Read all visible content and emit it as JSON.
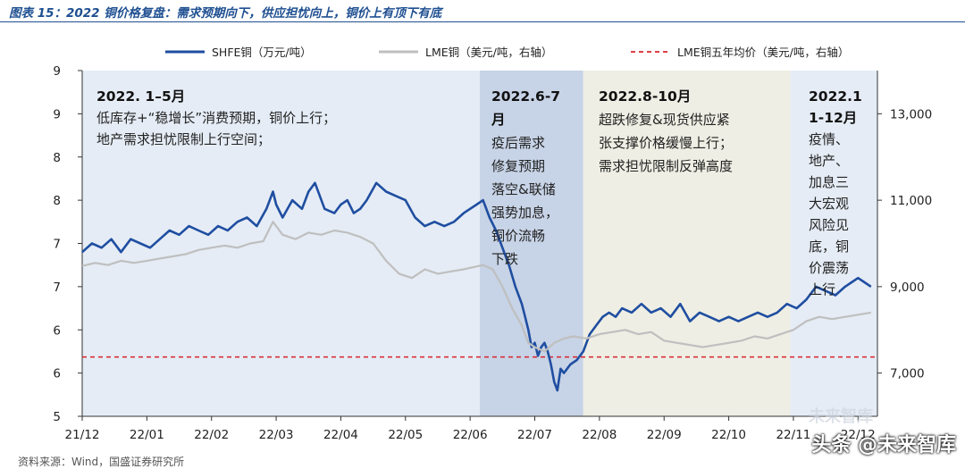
{
  "header": {
    "title": "图表 15：2022 铜价格复盘：需求预期向下，供应担忧向上，铜价上有顶下有底"
  },
  "chart_data": {
    "type": "line",
    "legend": [
      {
        "name": "SHFE铜（万元/吨）",
        "color": "#1f4ea1",
        "style": "solid",
        "placement": "top"
      },
      {
        "name": "LME铜（美元/吨，右轴）",
        "color": "#bfbfbf",
        "style": "solid",
        "placement": "top"
      },
      {
        "name": "LME铜五年均价（美元/吨，右轴）",
        "color": "#d9232d",
        "style": "dashed",
        "placement": "top"
      }
    ],
    "left_axis": {
      "ticks": [
        "9",
        "9",
        "8",
        "8",
        "7",
        "7",
        "6",
        "6",
        "5"
      ],
      "tick_values": [
        9.0,
        8.5,
        8.0,
        7.5,
        7.0,
        6.5,
        6.0,
        5.5,
        5.0
      ],
      "range": [
        5.0,
        9.0
      ]
    },
    "right_axis": {
      "ticks": [
        "13,000",
        "11,000",
        "9,000",
        "7,000"
      ],
      "tick_values": [
        13000,
        11000,
        9000,
        7000
      ],
      "range": [
        6000,
        14000
      ]
    },
    "x_axis": {
      "tick_labels": [
        "21/12",
        "22/01",
        "22/02",
        "22/03",
        "22/04",
        "22/05",
        "22/06",
        "22/07",
        "22/08",
        "22/09",
        "22/10",
        "22/11",
        "22/12"
      ],
      "range_months": [
        0,
        12.3
      ]
    },
    "lme_five_year_avg": 7373,
    "series": [
      {
        "name": "SHFE铜",
        "axis": "left",
        "points": [
          [
            0.0,
            6.9
          ],
          [
            0.15,
            7.0
          ],
          [
            0.3,
            6.95
          ],
          [
            0.45,
            7.05
          ],
          [
            0.6,
            6.9
          ],
          [
            0.75,
            7.05
          ],
          [
            0.9,
            7.0
          ],
          [
            1.05,
            6.95
          ],
          [
            1.2,
            7.05
          ],
          [
            1.35,
            7.15
          ],
          [
            1.5,
            7.1
          ],
          [
            1.65,
            7.2
          ],
          [
            1.8,
            7.15
          ],
          [
            1.95,
            7.1
          ],
          [
            2.1,
            7.2
          ],
          [
            2.25,
            7.15
          ],
          [
            2.4,
            7.25
          ],
          [
            2.55,
            7.3
          ],
          [
            2.7,
            7.2
          ],
          [
            2.85,
            7.4
          ],
          [
            2.95,
            7.6
          ],
          [
            3.0,
            7.45
          ],
          [
            3.1,
            7.3
          ],
          [
            3.25,
            7.5
          ],
          [
            3.4,
            7.4
          ],
          [
            3.5,
            7.6
          ],
          [
            3.6,
            7.7
          ],
          [
            3.75,
            7.4
          ],
          [
            3.9,
            7.35
          ],
          [
            4.0,
            7.45
          ],
          [
            4.1,
            7.5
          ],
          [
            4.2,
            7.35
          ],
          [
            4.3,
            7.4
          ],
          [
            4.4,
            7.5
          ],
          [
            4.55,
            7.7
          ],
          [
            4.7,
            7.6
          ],
          [
            4.85,
            7.55
          ],
          [
            5.0,
            7.5
          ],
          [
            5.15,
            7.3
          ],
          [
            5.3,
            7.2
          ],
          [
            5.45,
            7.25
          ],
          [
            5.6,
            7.2
          ],
          [
            5.75,
            7.25
          ],
          [
            5.9,
            7.35
          ],
          [
            6.0,
            7.4
          ],
          [
            6.1,
            7.45
          ],
          [
            6.2,
            7.5
          ],
          [
            6.3,
            7.3
          ],
          [
            6.4,
            7.15
          ],
          [
            6.5,
            6.95
          ],
          [
            6.6,
            6.75
          ],
          [
            6.7,
            6.5
          ],
          [
            6.8,
            6.3
          ],
          [
            6.85,
            6.15
          ],
          [
            6.9,
            6.0
          ],
          [
            6.95,
            5.8
          ],
          [
            7.0,
            5.85
          ],
          [
            7.05,
            5.7
          ],
          [
            7.1,
            5.8
          ],
          [
            7.15,
            5.85
          ],
          [
            7.2,
            5.75
          ],
          [
            7.25,
            5.6
          ],
          [
            7.3,
            5.4
          ],
          [
            7.35,
            5.3
          ],
          [
            7.4,
            5.55
          ],
          [
            7.45,
            5.5
          ],
          [
            7.55,
            5.6
          ],
          [
            7.65,
            5.65
          ],
          [
            7.75,
            5.75
          ],
          [
            7.85,
            5.95
          ],
          [
            7.95,
            6.05
          ],
          [
            8.05,
            6.15
          ],
          [
            8.15,
            6.2
          ],
          [
            8.25,
            6.15
          ],
          [
            8.35,
            6.25
          ],
          [
            8.5,
            6.2
          ],
          [
            8.65,
            6.3
          ],
          [
            8.8,
            6.2
          ],
          [
            8.95,
            6.25
          ],
          [
            9.1,
            6.15
          ],
          [
            9.25,
            6.3
          ],
          [
            9.4,
            6.1
          ],
          [
            9.55,
            6.2
          ],
          [
            9.7,
            6.15
          ],
          [
            9.85,
            6.1
          ],
          [
            10.0,
            6.15
          ],
          [
            10.15,
            6.1
          ],
          [
            10.3,
            6.15
          ],
          [
            10.45,
            6.2
          ],
          [
            10.6,
            6.15
          ],
          [
            10.75,
            6.2
          ],
          [
            10.9,
            6.3
          ],
          [
            11.05,
            6.25
          ],
          [
            11.2,
            6.35
          ],
          [
            11.35,
            6.5
          ],
          [
            11.5,
            6.45
          ],
          [
            11.65,
            6.4
          ],
          [
            11.8,
            6.5
          ],
          [
            11.9,
            6.55
          ],
          [
            12.0,
            6.6
          ],
          [
            12.1,
            6.55
          ],
          [
            12.2,
            6.5
          ]
        ]
      },
      {
        "name": "LME铜",
        "axis": "right",
        "points": [
          [
            0.0,
            9480
          ],
          [
            0.2,
            9550
          ],
          [
            0.4,
            9500
          ],
          [
            0.6,
            9600
          ],
          [
            0.8,
            9550
          ],
          [
            1.0,
            9600
          ],
          [
            1.2,
            9650
          ],
          [
            1.4,
            9700
          ],
          [
            1.6,
            9750
          ],
          [
            1.8,
            9850
          ],
          [
            2.0,
            9900
          ],
          [
            2.2,
            9950
          ],
          [
            2.4,
            9900
          ],
          [
            2.6,
            10000
          ],
          [
            2.8,
            10050
          ],
          [
            2.95,
            10500
          ],
          [
            3.1,
            10200
          ],
          [
            3.3,
            10100
          ],
          [
            3.5,
            10250
          ],
          [
            3.7,
            10200
          ],
          [
            3.9,
            10300
          ],
          [
            4.1,
            10250
          ],
          [
            4.3,
            10150
          ],
          [
            4.5,
            10000
          ],
          [
            4.7,
            9600
          ],
          [
            4.9,
            9300
          ],
          [
            5.1,
            9200
          ],
          [
            5.3,
            9400
          ],
          [
            5.5,
            9300
          ],
          [
            5.7,
            9350
          ],
          [
            5.9,
            9400
          ],
          [
            6.05,
            9450
          ],
          [
            6.2,
            9500
          ],
          [
            6.35,
            9400
          ],
          [
            6.5,
            9000
          ],
          [
            6.65,
            8500
          ],
          [
            6.8,
            8100
          ],
          [
            6.9,
            7700
          ],
          [
            7.0,
            7600
          ],
          [
            7.15,
            7500
          ],
          [
            7.3,
            7700
          ],
          [
            7.45,
            7800
          ],
          [
            7.6,
            7850
          ],
          [
            7.8,
            7800
          ],
          [
            8.0,
            7900
          ],
          [
            8.2,
            7950
          ],
          [
            8.4,
            8000
          ],
          [
            8.6,
            7900
          ],
          [
            8.8,
            7950
          ],
          [
            9.0,
            7750
          ],
          [
            9.2,
            7700
          ],
          [
            9.4,
            7650
          ],
          [
            9.6,
            7600
          ],
          [
            9.8,
            7650
          ],
          [
            10.0,
            7700
          ],
          [
            10.2,
            7750
          ],
          [
            10.4,
            7850
          ],
          [
            10.6,
            7800
          ],
          [
            10.8,
            7900
          ],
          [
            11.0,
            8000
          ],
          [
            11.2,
            8200
          ],
          [
            11.4,
            8300
          ],
          [
            11.6,
            8250
          ],
          [
            11.8,
            8300
          ],
          [
            12.0,
            8350
          ],
          [
            12.2,
            8400
          ]
        ]
      }
    ],
    "shaded_regions": [
      {
        "label": "2022. 1–5月",
        "start_month": 0,
        "end_month": 6.15,
        "color": "#e5ecf5"
      },
      {
        "label": "2022.6-7月",
        "start_month": 6.15,
        "end_month": 7.75,
        "color": "#c7d3e6"
      },
      {
        "label": "2022.8-10月",
        "start_month": 7.75,
        "end_month": 10.95,
        "color": "#eeeee4"
      },
      {
        "label": "2022.11-12月",
        "start_month": 10.95,
        "end_month": 12.3,
        "color": "#e5ecf5"
      }
    ],
    "annotations": [
      {
        "heading": "2022. 1–5月",
        "lines": [
          "低库存+“稳增长”消费预期，铜价上行；",
          "地产需求担忧限制上行空间；"
        ]
      },
      {
        "heading": [
          "2022.6-7",
          "月"
        ],
        "lines": [
          "疫后需求",
          "修复预期",
          "落空&联储",
          "强势加息，",
          "铜价流畅",
          "下跌"
        ]
      },
      {
        "heading": "2022.8-10月",
        "lines": [
          "超跌修复&现货供应紧",
          "张支撑价格缓慢上行；",
          "需求担忧限制反弹高度"
        ]
      },
      {
        "heading": [
          "2022.1",
          "1-12月"
        ],
        "lines": [
          "疫情、",
          "地产、",
          "加息三",
          "大宏观",
          "风险见",
          "底，铜",
          "价震荡",
          "上行"
        ]
      }
    ]
  },
  "footer": {
    "source": "资料来源：Wind，国盛证券研究所",
    "watermark": "头条 @未来智库",
    "watermark_sub": "未来智库"
  }
}
